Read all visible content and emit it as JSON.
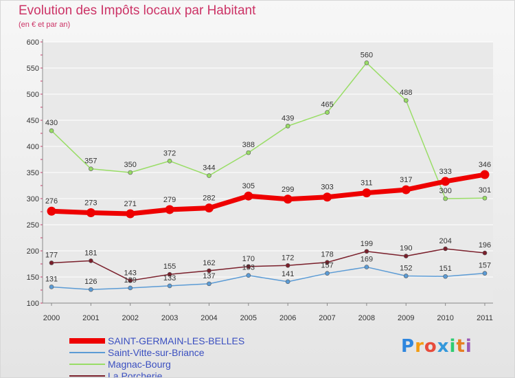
{
  "title": "Evolution des Impôts locaux par Habitant",
  "subtitle": "(en € et par an)",
  "logo": {
    "text": "Proxiti",
    "colors": [
      "#2e86de",
      "#f39c12",
      "#e74c3c",
      "#3498db",
      "#2ecc71",
      "#e67e22",
      "#9b59b6"
    ]
  },
  "colors": {
    "axis": "#888888",
    "grid": "#ffffff",
    "tick_text": "#333333",
    "value_text": "#333333"
  },
  "chart_data": {
    "type": "line",
    "x": [
      "2000",
      "2001",
      "2002",
      "2003",
      "2004",
      "2005",
      "2006",
      "2007",
      "2008",
      "2009",
      "2010",
      "2011"
    ],
    "ylim": [
      100,
      600
    ],
    "yticks": [
      100,
      150,
      200,
      250,
      300,
      350,
      400,
      450,
      500,
      550,
      600
    ],
    "grid": true,
    "legend_position": "bottom-left",
    "series": [
      {
        "name": "SAINT-GERMAIN-LES-BELLES",
        "color": "#ee0000",
        "emphasis": true,
        "values": [
          276,
          273,
          271,
          279,
          282,
          305,
          299,
          303,
          311,
          317,
          333,
          346
        ]
      },
      {
        "name": "Saint-Vitte-sur-Briance",
        "color": "#5b9bd5",
        "emphasis": false,
        "values": [
          131,
          126,
          129,
          133,
          137,
          153,
          141,
          157,
          169,
          152,
          151,
          157
        ]
      },
      {
        "name": "Magnac-Bourg",
        "color": "#99dd66",
        "emphasis": false,
        "values": [
          430,
          357,
          350,
          372,
          344,
          388,
          439,
          465,
          560,
          488,
          300,
          301
        ]
      },
      {
        "name": "La Porcherie",
        "color": "#7a1f2b",
        "emphasis": false,
        "values": [
          177,
          181,
          143,
          155,
          162,
          170,
          172,
          178,
          199,
          190,
          204,
          196
        ]
      }
    ]
  }
}
